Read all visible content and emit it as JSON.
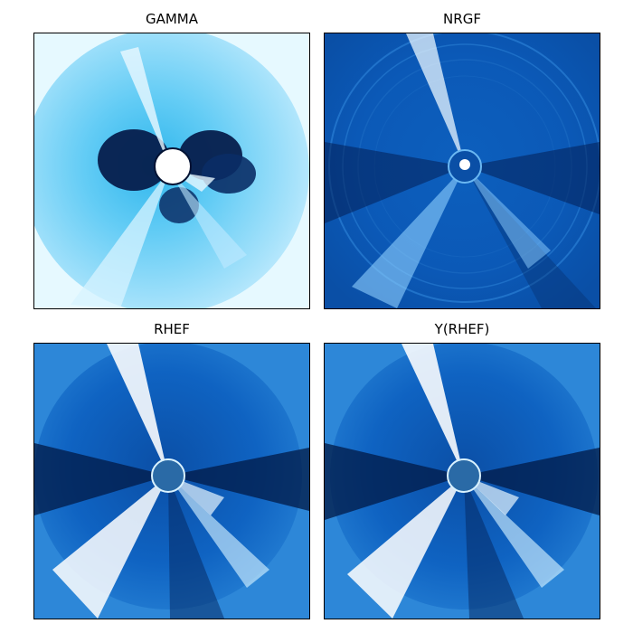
{
  "figure": {
    "panels": [
      {
        "title": "GAMMA"
      },
      {
        "title": "NRGF"
      },
      {
        "title": "RHEF"
      },
      {
        "title": "Y(RHEF)"
      }
    ]
  },
  "colors": {
    "colormap_dark": "#031b49",
    "colormap_mid": "#0a5cb8",
    "colormap_light": "#c9ecff",
    "colormap_white": "#ffffff"
  }
}
